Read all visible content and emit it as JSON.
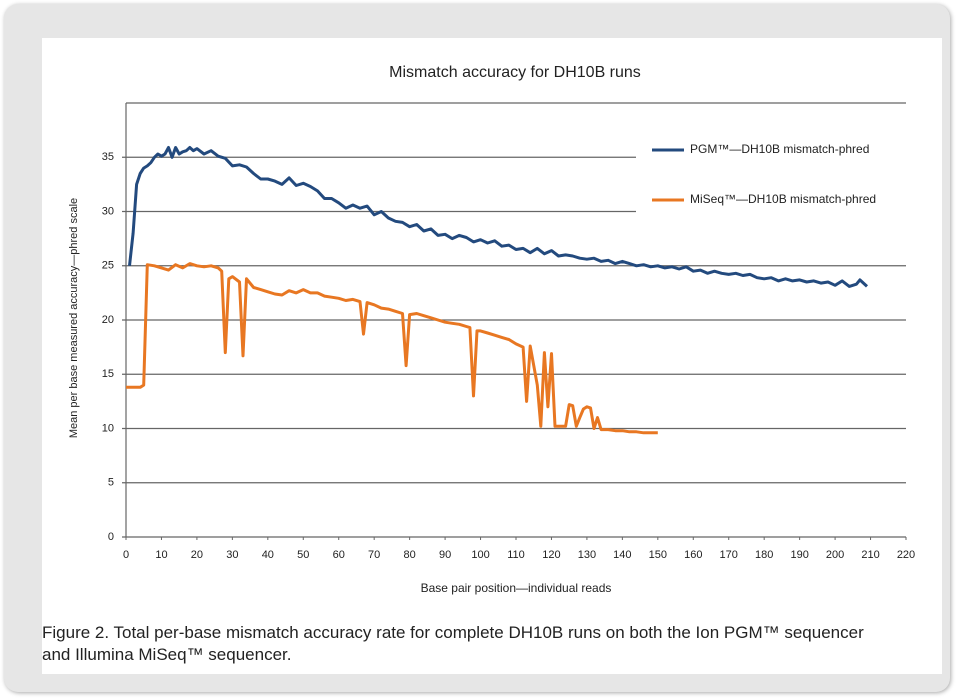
{
  "chart_data": {
    "type": "line",
    "title": "Mismatch accuracy for DH10B runs",
    "x_label": "Base pair position—individual reads",
    "y_label": "Mean per base measured accuracy—phred scale",
    "caption": "Figure 2. Total per-base mismatch accuracy rate for complete DH10B runs on both the Ion PGM™ sequencer and Illumina MiSeq™ sequencer.",
    "xlim": [
      0,
      220
    ],
    "xticks": [
      0,
      10,
      20,
      30,
      40,
      50,
      60,
      70,
      80,
      90,
      100,
      110,
      120,
      130,
      140,
      150,
      160,
      170,
      180,
      190,
      200,
      210,
      220
    ],
    "ylim": [
      0,
      40
    ],
    "yticks": [
      0,
      5,
      10,
      15,
      20,
      25,
      30,
      35
    ],
    "grid": true,
    "legend": "upper right",
    "series": [
      {
        "name": "PGM™—DH10B mismatch-phred",
        "color": "#234a7e",
        "x": [
          1,
          2,
          3,
          4,
          5,
          6,
          7,
          8,
          9,
          10,
          11,
          12,
          13,
          14,
          15,
          16,
          17,
          18,
          19,
          20,
          22,
          24,
          26,
          28,
          30,
          32,
          34,
          36,
          38,
          40,
          42,
          44,
          46,
          48,
          50,
          52,
          54,
          56,
          58,
          60,
          62,
          64,
          66,
          68,
          70,
          72,
          74,
          76,
          78,
          80,
          82,
          84,
          86,
          88,
          90,
          92,
          94,
          96,
          98,
          100,
          102,
          104,
          106,
          108,
          110,
          112,
          114,
          116,
          118,
          120,
          122,
          124,
          126,
          128,
          130,
          132,
          134,
          136,
          138,
          140,
          142,
          144,
          146,
          148,
          150,
          152,
          154,
          156,
          158,
          160,
          162,
          164,
          166,
          168,
          170,
          172,
          174,
          176,
          178,
          180,
          182,
          184,
          186,
          188,
          190,
          192,
          194,
          196,
          198,
          200,
          202,
          204,
          206,
          207,
          209
        ],
        "values": [
          25,
          28,
          32.5,
          33.5,
          34,
          34.2,
          34.5,
          35,
          35.3,
          35.1,
          35.3,
          35.9,
          35,
          35.9,
          35.3,
          35.5,
          35.6,
          35.9,
          35.6,
          35.8,
          35.3,
          35.6,
          35.1,
          34.9,
          34.2,
          34.3,
          34.1,
          33.5,
          33,
          33,
          32.8,
          32.5,
          33.1,
          32.4,
          32.6,
          32.3,
          31.9,
          31.2,
          31.2,
          30.8,
          30.3,
          30.6,
          30.3,
          30.5,
          29.7,
          30,
          29.4,
          29.1,
          29,
          28.6,
          28.8,
          28.2,
          28.4,
          27.8,
          27.9,
          27.5,
          27.8,
          27.6,
          27.2,
          27.4,
          27.1,
          27.3,
          26.8,
          26.9,
          26.5,
          26.6,
          26.2,
          26.6,
          26.1,
          26.4,
          25.9,
          26,
          25.9,
          25.7,
          25.6,
          25.7,
          25.4,
          25.5,
          25.2,
          25.4,
          25.2,
          25,
          25.1,
          24.9,
          25,
          24.8,
          24.9,
          24.7,
          24.9,
          24.5,
          24.6,
          24.3,
          24.5,
          24.3,
          24.2,
          24.3,
          24.1,
          24.2,
          23.9,
          23.8,
          23.9,
          23.6,
          23.8,
          23.6,
          23.7,
          23.5,
          23.6,
          23.4,
          23.5,
          23.2,
          23.6,
          23.1,
          23.3,
          23.7,
          23.1
        ]
      },
      {
        "name": "MiSeq™—DH10B mismatch-phred",
        "color": "#e87722",
        "x": [
          0,
          4,
          5,
          6,
          8,
          10,
          12,
          14,
          16,
          18,
          20,
          22,
          24,
          26,
          27,
          28,
          29,
          30,
          32,
          33,
          34,
          36,
          38,
          40,
          42,
          44,
          46,
          48,
          50,
          52,
          54,
          56,
          58,
          60,
          62,
          64,
          66,
          67,
          68,
          70,
          72,
          74,
          76,
          78,
          79,
          80,
          82,
          84,
          86,
          88,
          90,
          92,
          94,
          96,
          97,
          98,
          99,
          100,
          102,
          104,
          106,
          108,
          110,
          112,
          113,
          114,
          116,
          117,
          118,
          119,
          120,
          121,
          122,
          124,
          125,
          126,
          127,
          128,
          129,
          130,
          131,
          132,
          133,
          134,
          136,
          138,
          140,
          142,
          144,
          146,
          148,
          150
        ],
        "values": [
          13.8,
          13.8,
          14,
          25.1,
          25,
          24.8,
          24.6,
          25.1,
          24.8,
          25.2,
          25,
          24.9,
          25,
          24.8,
          24.5,
          17,
          23.8,
          24,
          23.5,
          16.7,
          23.8,
          23,
          22.8,
          22.6,
          22.4,
          22.3,
          22.7,
          22.5,
          22.8,
          22.5,
          22.5,
          22.2,
          22.1,
          22,
          21.8,
          21.9,
          21.7,
          18.7,
          21.6,
          21.4,
          21.1,
          21,
          20.8,
          20.6,
          15.8,
          20.5,
          20.6,
          20.4,
          20.2,
          20,
          19.8,
          19.7,
          19.6,
          19.4,
          19.3,
          13,
          19,
          19,
          18.8,
          18.6,
          18.4,
          18.2,
          17.8,
          17.5,
          12.5,
          17.6,
          14,
          10.2,
          17,
          12,
          16.9,
          10.2,
          10.2,
          10.2,
          12.2,
          12.1,
          10.2,
          11,
          11.8,
          12,
          11.9,
          10,
          11,
          9.9,
          9.9,
          9.8,
          9.8,
          9.7,
          9.7,
          9.6,
          9.6,
          9.6
        ]
      }
    ]
  }
}
